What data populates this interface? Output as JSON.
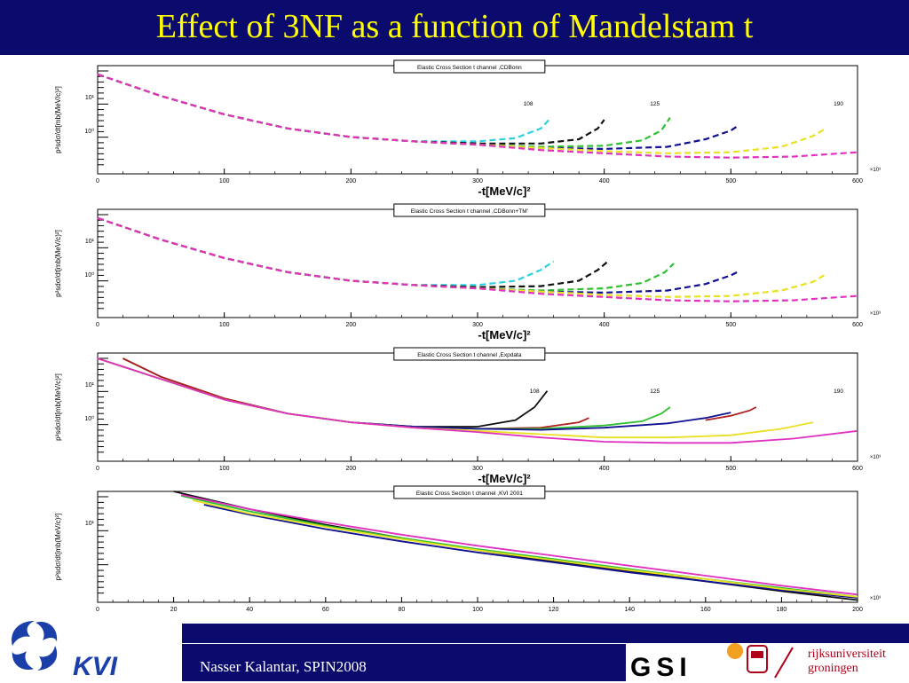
{
  "slide": {
    "title": "Effect of 3NF as a function of Mandelstam t",
    "footer_text": "Nasser Kalantar, SPIN2008",
    "logo_kvi": "KVI",
    "logo_gsi": "GSI",
    "logo_rug_line1": "rijksuniversiteit",
    "logo_rug_line2": "groningen",
    "colors": {
      "title_bar": "#0b0b6e",
      "title_text": "#ffff00"
    }
  },
  "chart_data": [
    {
      "type": "line",
      "title": "Elastic Cross Section t channel ,CDBonn",
      "xlabel": "-t[MeV/c]²",
      "ylabel": "p²sdσ/dt[mb(MeV/c)²]",
      "x_exponent_label": "×10³",
      "xlim": [
        0,
        600
      ],
      "xticks": [
        "0",
        "100",
        "200",
        "300",
        "400",
        "500",
        "600"
      ],
      "yticks": [
        "10¹",
        "10⁰"
      ],
      "style": "dashed",
      "annotations": [
        {
          "text": "108",
          "x": 340
        },
        {
          "text": "125",
          "x": 440
        },
        {
          "text": "190",
          "x": 585
        }
      ],
      "series": [
        {
          "color": "#30d0e0",
          "x": [
            0,
            50,
            100,
            150,
            200,
            250,
            300,
            330,
            350,
            358
          ],
          "y": [
            0.92,
            0.72,
            0.55,
            0.42,
            0.34,
            0.3,
            0.3,
            0.33,
            0.42,
            0.52
          ]
        },
        {
          "color": "#101010",
          "x": [
            0,
            50,
            100,
            150,
            200,
            250,
            300,
            350,
            380,
            395,
            400
          ],
          "y": [
            0.92,
            0.72,
            0.55,
            0.42,
            0.34,
            0.3,
            0.28,
            0.28,
            0.32,
            0.42,
            0.5
          ]
        },
        {
          "color": "#30c030",
          "x": [
            0,
            50,
            100,
            150,
            200,
            250,
            300,
            350,
            400,
            430,
            445,
            452
          ],
          "y": [
            0.92,
            0.72,
            0.55,
            0.42,
            0.34,
            0.3,
            0.27,
            0.25,
            0.26,
            0.31,
            0.4,
            0.52
          ]
        },
        {
          "color": "#101090",
          "x": [
            0,
            50,
            100,
            150,
            200,
            250,
            300,
            350,
            400,
            450,
            480,
            500,
            505
          ],
          "y": [
            0.92,
            0.72,
            0.55,
            0.42,
            0.34,
            0.3,
            0.27,
            0.24,
            0.23,
            0.25,
            0.32,
            0.4,
            0.44
          ]
        },
        {
          "color": "#e8e020",
          "x": [
            0,
            50,
            100,
            150,
            200,
            250,
            300,
            350,
            400,
            450,
            500,
            540,
            565,
            575
          ],
          "y": [
            0.92,
            0.72,
            0.55,
            0.42,
            0.34,
            0.3,
            0.27,
            0.24,
            0.21,
            0.19,
            0.2,
            0.25,
            0.35,
            0.42
          ]
        },
        {
          "color": "#e030c0",
          "x": [
            0,
            50,
            100,
            150,
            200,
            250,
            300,
            350,
            400,
            450,
            500,
            550,
            600
          ],
          "y": [
            0.92,
            0.72,
            0.55,
            0.42,
            0.34,
            0.3,
            0.27,
            0.22,
            0.19,
            0.16,
            0.15,
            0.16,
            0.2
          ]
        }
      ]
    },
    {
      "type": "line",
      "title": "Elastic Cross Section t channel ,CDBonn+TM'",
      "xlabel": "-t[MeV/c]²",
      "ylabel": "p²sdσ/dt[mb(MeV/c)²]",
      "x_exponent_label": "×10³",
      "xlim": [
        0,
        600
      ],
      "xticks": [
        "0",
        "100",
        "200",
        "300",
        "400",
        "500",
        "600"
      ],
      "yticks": [
        "10¹",
        "10⁰"
      ],
      "style": "dashed",
      "annotations": [],
      "series": [
        {
          "color": "#30d0e0",
          "x": [
            0,
            50,
            100,
            150,
            200,
            250,
            300,
            330,
            350,
            360
          ],
          "y": [
            0.92,
            0.72,
            0.55,
            0.42,
            0.34,
            0.3,
            0.3,
            0.34,
            0.44,
            0.52
          ]
        },
        {
          "color": "#101010",
          "x": [
            0,
            50,
            100,
            150,
            200,
            250,
            300,
            350,
            380,
            395,
            403
          ],
          "y": [
            0.92,
            0.72,
            0.55,
            0.42,
            0.34,
            0.3,
            0.28,
            0.29,
            0.34,
            0.44,
            0.52
          ]
        },
        {
          "color": "#30c030",
          "x": [
            0,
            50,
            100,
            150,
            200,
            250,
            300,
            350,
            400,
            430,
            448,
            455
          ],
          "y": [
            0.92,
            0.72,
            0.55,
            0.42,
            0.34,
            0.3,
            0.27,
            0.25,
            0.27,
            0.32,
            0.42,
            0.5
          ]
        },
        {
          "color": "#101090",
          "x": [
            0,
            50,
            100,
            150,
            200,
            250,
            300,
            350,
            400,
            450,
            480,
            500,
            505
          ],
          "y": [
            0.92,
            0.72,
            0.55,
            0.42,
            0.34,
            0.3,
            0.27,
            0.24,
            0.23,
            0.25,
            0.31,
            0.39,
            0.42
          ]
        },
        {
          "color": "#e8e020",
          "x": [
            0,
            50,
            100,
            150,
            200,
            250,
            300,
            350,
            400,
            450,
            500,
            540,
            565,
            575
          ],
          "y": [
            0.92,
            0.72,
            0.55,
            0.42,
            0.34,
            0.3,
            0.27,
            0.24,
            0.21,
            0.19,
            0.2,
            0.25,
            0.33,
            0.4
          ]
        },
        {
          "color": "#e030c0",
          "x": [
            0,
            50,
            100,
            150,
            200,
            250,
            300,
            350,
            400,
            450,
            500,
            550,
            600
          ],
          "y": [
            0.92,
            0.72,
            0.55,
            0.42,
            0.34,
            0.3,
            0.27,
            0.22,
            0.19,
            0.16,
            0.15,
            0.16,
            0.2
          ]
        }
      ]
    },
    {
      "type": "line",
      "title": "Elastic Cross Section t channel ,Expdata",
      "xlabel": "-t[MeV/c]²",
      "ylabel": "p²sdσ/dt[mb(MeV/c)²]",
      "x_exponent_label": "×10³",
      "xlim": [
        0,
        600
      ],
      "xticks": [
        "0",
        "100",
        "200",
        "300",
        "400",
        "500",
        "600"
      ],
      "yticks": [
        "10¹",
        "10⁰"
      ],
      "style": "solid",
      "annotations": [
        {
          "text": "108",
          "x": 345
        },
        {
          "text": "125",
          "x": 440
        },
        {
          "text": "190",
          "x": 585
        }
      ],
      "series": [
        {
          "color": "#101010",
          "x": [
            20,
            50,
            100,
            150,
            200,
            250,
            300,
            330,
            345,
            355
          ],
          "y": [
            0.95,
            0.78,
            0.58,
            0.44,
            0.36,
            0.32,
            0.32,
            0.38,
            0.5,
            0.65
          ]
        },
        {
          "color": "#b02020",
          "x": [
            20,
            50,
            100,
            150,
            200,
            250,
            300,
            350,
            380,
            388
          ],
          "y": [
            0.95,
            0.78,
            0.58,
            0.44,
            0.36,
            0.32,
            0.3,
            0.31,
            0.36,
            0.4
          ]
        },
        {
          "color": "#30c030",
          "x": [
            0,
            50,
            100,
            150,
            200,
            250,
            300,
            350,
            400,
            430,
            445,
            452
          ],
          "y": [
            0.95,
            0.76,
            0.57,
            0.44,
            0.36,
            0.32,
            0.3,
            0.3,
            0.33,
            0.37,
            0.44,
            0.5
          ]
        },
        {
          "color": "#101090",
          "x": [
            0,
            50,
            100,
            150,
            200,
            250,
            300,
            350,
            400,
            450,
            480,
            500
          ],
          "y": [
            0.95,
            0.76,
            0.57,
            0.44,
            0.36,
            0.32,
            0.3,
            0.29,
            0.31,
            0.35,
            0.4,
            0.45
          ]
        },
        {
          "color": "#b02020",
          "x": [
            480,
            500,
            515,
            520
          ],
          "y": [
            0.38,
            0.42,
            0.47,
            0.5
          ]
        },
        {
          "color": "#e8e020",
          "x": [
            0,
            50,
            100,
            150,
            200,
            250,
            300,
            350,
            400,
            450,
            500,
            540,
            565
          ],
          "y": [
            0.95,
            0.76,
            0.57,
            0.44,
            0.36,
            0.31,
            0.28,
            0.25,
            0.22,
            0.22,
            0.24,
            0.3,
            0.36
          ]
        },
        {
          "color": "#e030c0",
          "x": [
            0,
            50,
            100,
            150,
            200,
            250,
            300,
            350,
            400,
            450,
            500,
            550,
            600
          ],
          "y": [
            0.95,
            0.76,
            0.57,
            0.44,
            0.36,
            0.31,
            0.27,
            0.22,
            0.18,
            0.17,
            0.17,
            0.21,
            0.28
          ]
        }
      ]
    },
    {
      "type": "line",
      "title": "Elastic Cross Section t channel ,KVI 2001",
      "xlabel": "-t[MeV/c]²",
      "ylabel": "p²sdσ/dt[mb(MeV/c)²]",
      "x_exponent_label": "×10³",
      "xlim": [
        0,
        200
      ],
      "xticks": [
        "0",
        "20",
        "40",
        "60",
        "80",
        "100",
        "120",
        "140",
        "160",
        "180",
        "200"
      ],
      "yticks": [
        "10¹"
      ],
      "style": "solid",
      "annotations": [],
      "series": [
        {
          "color": "#101010",
          "x": [
            20,
            40,
            60,
            80,
            100,
            120,
            140,
            160,
            180,
            200
          ],
          "y": [
            1.0,
            0.84,
            0.7,
            0.58,
            0.47,
            0.37,
            0.28,
            0.19,
            0.1,
            0.02
          ]
        },
        {
          "color": "#101090",
          "x": [
            28,
            40,
            60,
            80,
            100,
            120,
            140,
            160,
            180,
            200
          ],
          "y": [
            0.88,
            0.79,
            0.66,
            0.55,
            0.45,
            0.36,
            0.27,
            0.19,
            0.11,
            0.04
          ]
        },
        {
          "color": "#30c030",
          "x": [
            22,
            40,
            60,
            80,
            100,
            120,
            140,
            160,
            180,
            200
          ],
          "y": [
            0.96,
            0.82,
            0.69,
            0.58,
            0.48,
            0.39,
            0.3,
            0.21,
            0.13,
            0.05
          ]
        },
        {
          "color": "#e8e020",
          "x": [
            25,
            40,
            60,
            80,
            100,
            120,
            140,
            160,
            180,
            200
          ],
          "y": [
            0.92,
            0.8,
            0.68,
            0.57,
            0.47,
            0.38,
            0.29,
            0.21,
            0.12,
            0.05
          ]
        },
        {
          "color": "#e030c0",
          "x": [
            22,
            40,
            60,
            80,
            100,
            120,
            140,
            160,
            180,
            200
          ],
          "y": [
            0.97,
            0.84,
            0.72,
            0.61,
            0.51,
            0.42,
            0.33,
            0.24,
            0.15,
            0.07
          ]
        }
      ]
    }
  ]
}
